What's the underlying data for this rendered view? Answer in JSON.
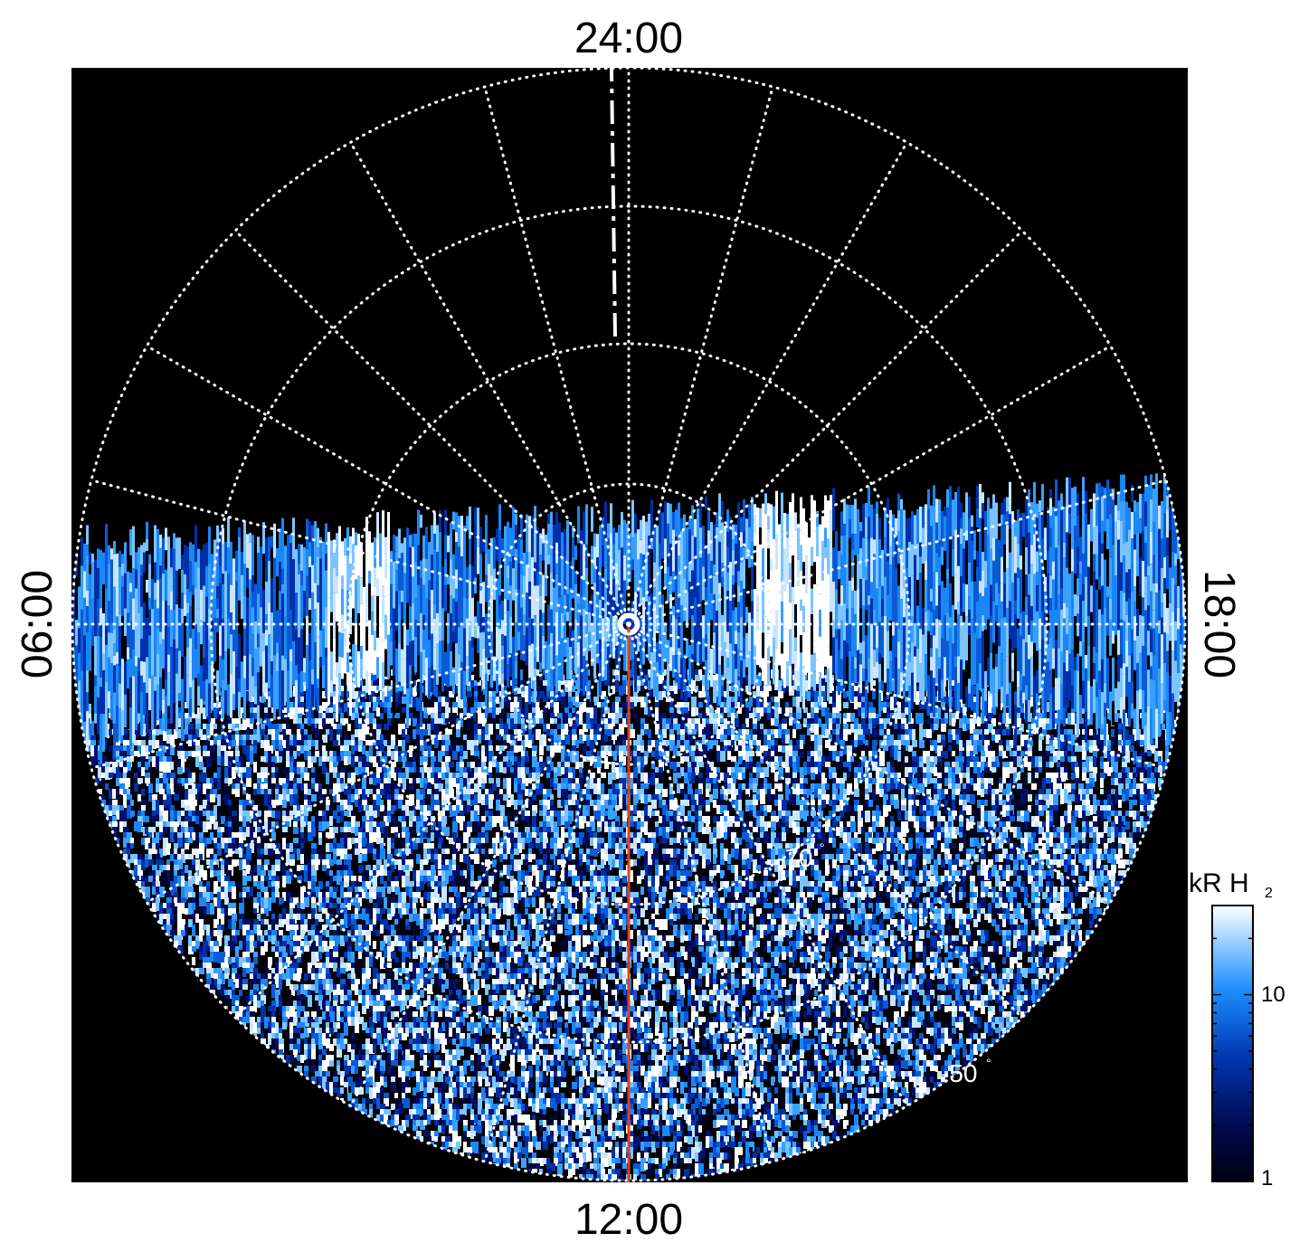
{
  "figure": {
    "local_time_labels": {
      "top": "24:00",
      "bottom": "12:00",
      "left": "06:00",
      "right": "18:00"
    },
    "latitude_labels": [
      {
        "value": "-70",
        "unit": "°"
      },
      {
        "value": "-50",
        "unit": "°"
      }
    ],
    "colorbar": {
      "label": "kR H",
      "label_subscript": "2",
      "ticks": [
        "10",
        "1"
      ],
      "scale": "log",
      "range": [
        1,
        30
      ],
      "colors": [
        "#000010",
        "#000a50",
        "#0036b0",
        "#1f8fff",
        "#9fd4ff",
        "#ffffff"
      ]
    },
    "colors": {
      "background": "#000000",
      "grid": "#ffffff",
      "meridian_line": "#e0401a"
    },
    "icons": [
      "pole-marker-icon"
    ]
  }
}
